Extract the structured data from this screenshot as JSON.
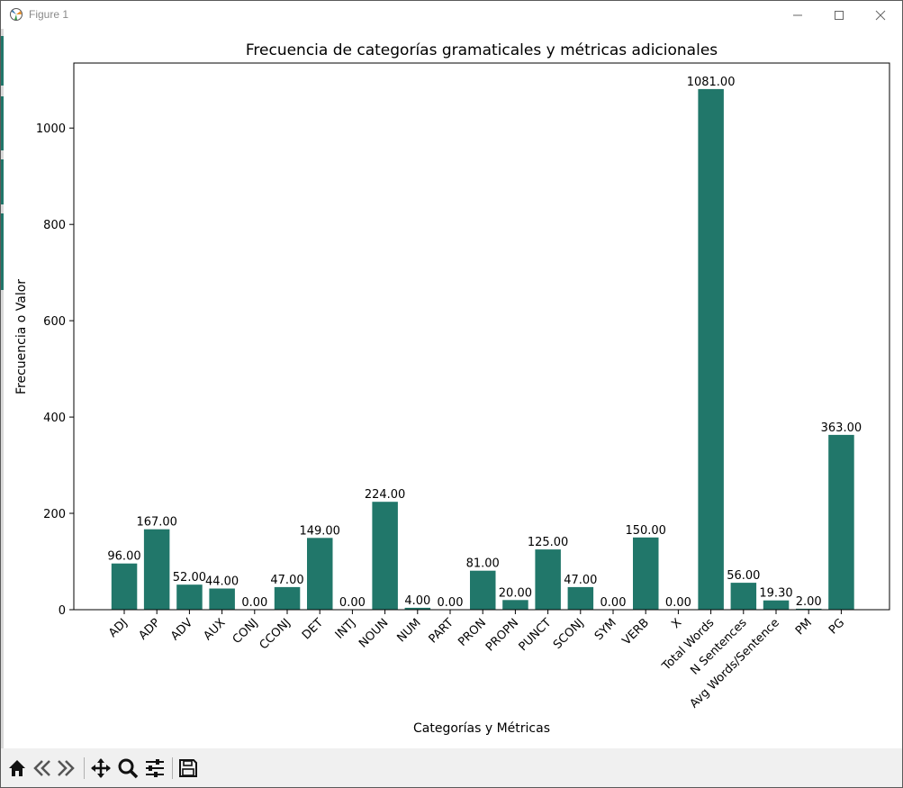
{
  "window": {
    "title": "Figure 1",
    "icons": [
      "matplotlib-icon",
      "minimize-icon",
      "maximize-icon",
      "close-icon"
    ]
  },
  "toolbar": {
    "buttons": [
      "home-icon",
      "back-icon",
      "forward-icon",
      "pan-icon",
      "zoom-icon",
      "configure-subplots-icon",
      "save-icon"
    ]
  },
  "colors": {
    "bar": "#21776a",
    "axes": "#000000",
    "toolbar_bg": "#f0f0f0"
  },
  "chart_data": {
    "type": "bar",
    "title": "Frecuencia de categorías gramaticales y métricas adicionales",
    "xlabel": "Categorías y Métricas",
    "ylabel": "Frecuencia o Valor",
    "categories": [
      "ADJ",
      "ADP",
      "ADV",
      "AUX",
      "CONJ",
      "CCONJ",
      "DET",
      "INTJ",
      "NOUN",
      "NUM",
      "PART",
      "PRON",
      "PROPN",
      "PUNCT",
      "SCONJ",
      "SYM",
      "VERB",
      "X",
      "Total Words",
      "N Sentences",
      "Avg Words/Sentence",
      "PM",
      "PG"
    ],
    "values": [
      96,
      167,
      52,
      44,
      0,
      47,
      149,
      0,
      224,
      4,
      0,
      81,
      20,
      125,
      47,
      0,
      150,
      0,
      1081,
      56,
      19.3,
      2,
      363
    ],
    "value_labels": [
      "96.00",
      "167.00",
      "52.00",
      "44.00",
      "0.00",
      "47.00",
      "149.00",
      "0.00",
      "224.00",
      "4.00",
      "0.00",
      "81.00",
      "20.00",
      "125.00",
      "47.00",
      "0.00",
      "150.00",
      "0.00",
      "1081.00",
      "56.00",
      "19.30",
      "2.00",
      "363.00"
    ],
    "yticks": [
      0,
      200,
      400,
      600,
      800,
      1000
    ],
    "ylim": [
      0,
      1135
    ],
    "grid": false,
    "legend": false
  }
}
